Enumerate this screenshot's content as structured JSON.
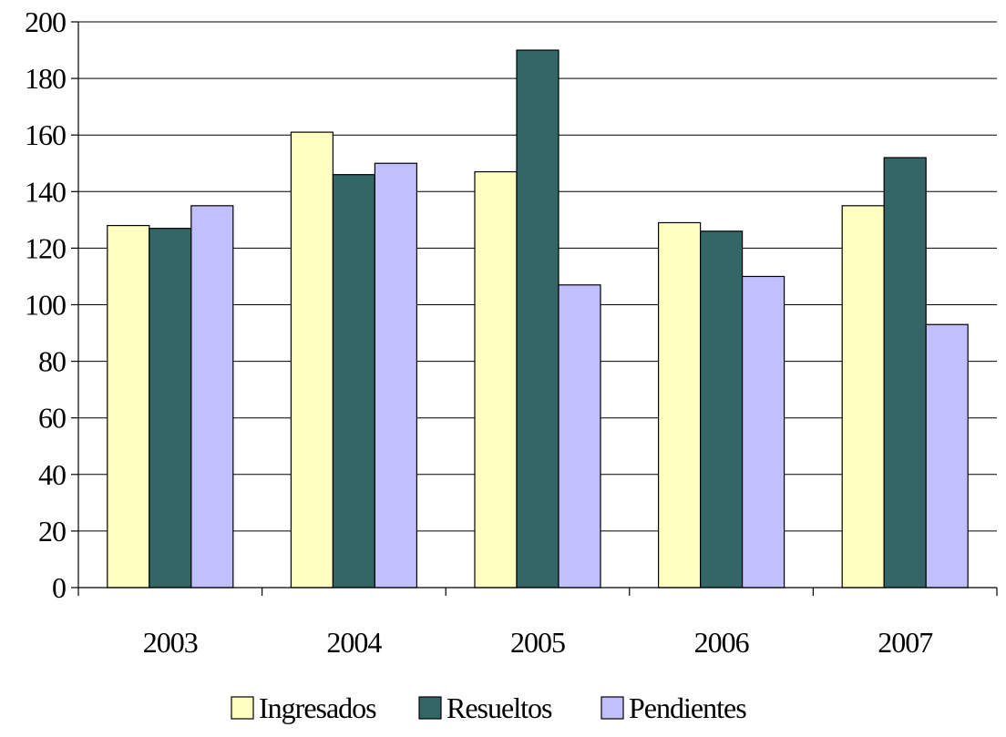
{
  "chart_data": {
    "type": "bar",
    "title": "",
    "xlabel": "",
    "ylabel": "",
    "categories": [
      "2003",
      "2004",
      "2005",
      "2006",
      "2007"
    ],
    "series": [
      {
        "name": "Ingresados",
        "values": [
          128,
          161,
          147,
          129,
          135
        ],
        "color": "#FFFFC0"
      },
      {
        "name": "Resueltos",
        "values": [
          127,
          146,
          190,
          126,
          152
        ],
        "color": "#336666"
      },
      {
        "name": "Pendientes",
        "values": [
          135,
          150,
          107,
          110,
          93
        ],
        "color": "#C0C0FF"
      }
    ],
    "ylim": [
      0,
      200
    ],
    "yticks": [
      0,
      20,
      40,
      60,
      80,
      100,
      120,
      140,
      160,
      180,
      200
    ],
    "grid": true,
    "legend_position": "bottom"
  }
}
